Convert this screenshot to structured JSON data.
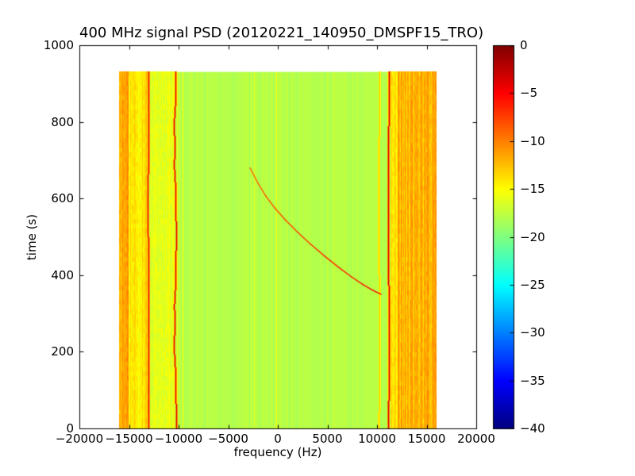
{
  "figure": {
    "background": "#ffffff"
  },
  "chart_data": {
    "type": "heatmap",
    "title": "400 MHz signal PSD (20120221_140950_DMSPF15_TRO)",
    "xlabel": "frequency (Hz)",
    "ylabel": "time (s)",
    "xlim": [
      -20000,
      20000
    ],
    "ylim": [
      0,
      1000
    ],
    "xticks": [
      -20000,
      -15000,
      -10000,
      -5000,
      0,
      5000,
      10000,
      15000,
      20000
    ],
    "xtick_labels": [
      "−20000",
      "−15000",
      "−10000",
      "−5000",
      "0",
      "5000",
      "10000",
      "15000",
      "20000"
    ],
    "yticks": [
      0,
      200,
      400,
      600,
      800,
      1000
    ],
    "ytick_labels": [
      "0",
      "200",
      "400",
      "600",
      "800",
      "1000"
    ],
    "grid": false,
    "colormap": "jet",
    "colorbar": {
      "position": "right",
      "vmin": -40,
      "vmax": 0,
      "ticks": [
        0,
        -5,
        -10,
        -15,
        -20,
        -25,
        -30,
        -35,
        -40
      ],
      "tick_labels": [
        "0",
        "−5",
        "−10",
        "−15",
        "−20",
        "−25",
        "−30",
        "−35",
        "−40"
      ]
    },
    "data_extent": {
      "freq": [
        -16000,
        16000
      ],
      "time": [
        0,
        930
      ]
    },
    "background_value_db": -18,
    "features": {
      "bands": [
        {
          "freq": [
            -16000,
            -15000
          ],
          "base": -11.5,
          "variation": 3.0,
          "desc": "left outer orange striped band"
        },
        {
          "freq": [
            -15000,
            -13100
          ],
          "base": -14.0,
          "variation": 2.5,
          "desc": "left inner yellow striped band"
        },
        {
          "freq": [
            -12900,
            -10500
          ],
          "base": -16.2,
          "variation": 1.6,
          "desc": "yellow-green band between carriers"
        },
        {
          "freq": [
            11400,
            12100
          ],
          "base": -14.0,
          "variation": 2.5,
          "desc": "right inner yellow striped band"
        },
        {
          "freq": [
            12100,
            16000
          ],
          "base": -12.0,
          "variation": 3.0,
          "desc": "right outer orange striped band"
        }
      ],
      "lines": [
        {
          "freq": -13050,
          "value": -4,
          "halo": -11,
          "wiggle": false,
          "desc": "strong carrier line"
        },
        {
          "freq": -10350,
          "value": -3.5,
          "halo": -11,
          "wiggle": true,
          "desc": "strong wiggly carrier line"
        },
        {
          "freq": 10200,
          "value": -12.5,
          "halo": -15,
          "wiggle": false,
          "desc": "faint line"
        },
        {
          "freq": 11150,
          "value": -3.5,
          "halo": -10,
          "wiggle": false,
          "desc": "strong carrier line"
        }
      ],
      "chirp": {
        "desc": "doppler S-curve of satellite pass",
        "value_range": [
          -9,
          -5
        ],
        "points_freq_time": [
          [
            -2800,
            680
          ],
          [
            -2000,
            640
          ],
          [
            -1200,
            606
          ],
          [
            -300,
            575
          ],
          [
            800,
            543
          ],
          [
            2000,
            512
          ],
          [
            3300,
            481
          ],
          [
            4700,
            450
          ],
          [
            6100,
            421
          ],
          [
            7400,
            396
          ],
          [
            8600,
            375
          ],
          [
            9600,
            360
          ],
          [
            10400,
            350
          ]
        ]
      },
      "noise_stripes": {
        "bright_fraction": 0.05,
        "bright_value_range": [
          -16,
          -15
        ],
        "desc": "faint vertical yellow striping across green region"
      }
    }
  }
}
